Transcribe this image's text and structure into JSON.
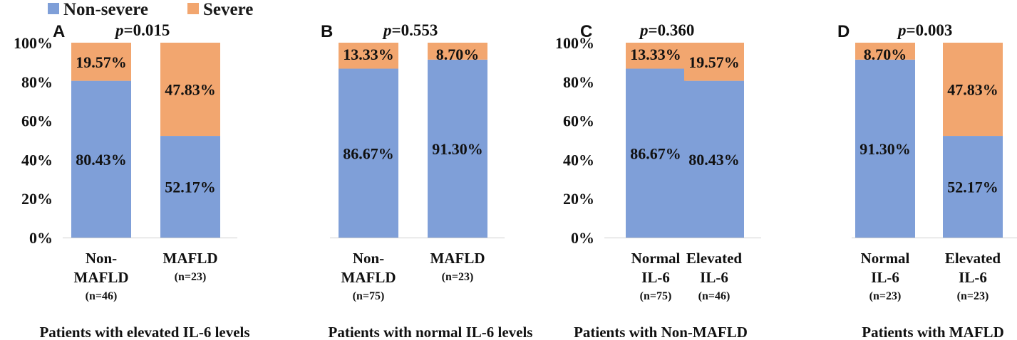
{
  "legend": {
    "items": [
      {
        "label": "Non-severe",
        "color": "#7f9fd8"
      },
      {
        "label": "Severe",
        "color": "#f2a66f"
      }
    ]
  },
  "chart_data": [
    {
      "type": "bar",
      "stacked": true,
      "panel_label": "A",
      "p_prefix": "p",
      "p_value": "=0.015",
      "title": "Patients with elevated IL-6 levels",
      "categories": [
        {
          "lines": [
            "Non-",
            "MAFLD"
          ],
          "n": "(n=46)"
        },
        {
          "lines": [
            "MAFLD"
          ],
          "n": "(n=23)"
        }
      ],
      "series": [
        {
          "name": "Non-severe",
          "values": [
            80.43,
            52.17
          ],
          "labels": [
            "80.43%",
            "52.17%"
          ]
        },
        {
          "name": "Severe",
          "values": [
            19.57,
            47.83
          ],
          "labels": [
            "19.57%",
            "47.83%"
          ]
        }
      ],
      "ylim": [
        0,
        100
      ],
      "yticks": [
        "0%",
        "20%",
        "40%",
        "60%",
        "80%",
        "100%"
      ]
    },
    {
      "type": "bar",
      "stacked": true,
      "panel_label": "B",
      "p_prefix": "p",
      "p_value": "=0.553",
      "title": "Patients with normal IL-6 levels",
      "categories": [
        {
          "lines": [
            "Non-",
            "MAFLD"
          ],
          "n": "(n=75)"
        },
        {
          "lines": [
            "MAFLD"
          ],
          "n": "(n=23)"
        }
      ],
      "series": [
        {
          "name": "Non-severe",
          "values": [
            86.67,
            91.3
          ],
          "labels": [
            "86.67%",
            "91.30%"
          ]
        },
        {
          "name": "Severe",
          "values": [
            13.33,
            8.7
          ],
          "labels": [
            "13.33%",
            "8.70%"
          ]
        }
      ],
      "ylim": [
        0,
        100
      ]
    },
    {
      "type": "bar",
      "stacked": true,
      "panel_label": "C",
      "p_prefix": "p",
      "p_value": "=0.360",
      "title": "Patients with Non-MAFLD",
      "categories": [
        {
          "lines": [
            "Normal",
            "IL-6"
          ],
          "n": "(n=75)"
        },
        {
          "lines": [
            "Elevated",
            "IL-6"
          ],
          "n": "(n=46)"
        }
      ],
      "series": [
        {
          "name": "Non-severe",
          "values": [
            86.67,
            80.43
          ],
          "labels": [
            "86.67%",
            "80.43%"
          ]
        },
        {
          "name": "Severe",
          "values": [
            13.33,
            19.57
          ],
          "labels": [
            "13.33%",
            "19.57%"
          ]
        }
      ],
      "ylim": [
        0,
        100
      ],
      "yticks": [
        "0%",
        "20%",
        "40%",
        "60%",
        "80%",
        "100%"
      ]
    },
    {
      "type": "bar",
      "stacked": true,
      "panel_label": "D",
      "p_prefix": "p",
      "p_value": "=0.003",
      "title": "Patients with MAFLD",
      "categories": [
        {
          "lines": [
            "Normal",
            "IL-6"
          ],
          "n": "(n=23)"
        },
        {
          "lines": [
            "Elevated",
            "IL-6"
          ],
          "n": "(n=23)"
        }
      ],
      "series": [
        {
          "name": "Non-severe",
          "values": [
            91.3,
            52.17
          ],
          "labels": [
            "91.30%",
            "52.17%"
          ]
        },
        {
          "name": "Severe",
          "values": [
            8.7,
            47.83
          ],
          "labels": [
            "8.70%",
            "47.83%"
          ]
        }
      ],
      "ylim": [
        0,
        100
      ]
    }
  ]
}
